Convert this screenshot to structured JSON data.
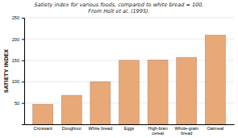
{
  "chart_data": {
    "type": "bar",
    "title": "Satiety index for various foods, compared to white bread = 100.",
    "subtitle": "From Holt et al. (1995).",
    "categories": [
      "Croissant",
      "Doughnut",
      "White bread",
      "Eggs",
      "High-bran\ncereal",
      "Whole-grain\nbread",
      "Oatmeal"
    ],
    "values": [
      47,
      68,
      100,
      150,
      151,
      157,
      209
    ],
    "color": "#E8A878",
    "ylabel": "SATIETY INDEX",
    "ylim": [
      0,
      250
    ],
    "yticks": [
      50,
      100,
      150,
      200,
      250
    ],
    "grid": true
  }
}
